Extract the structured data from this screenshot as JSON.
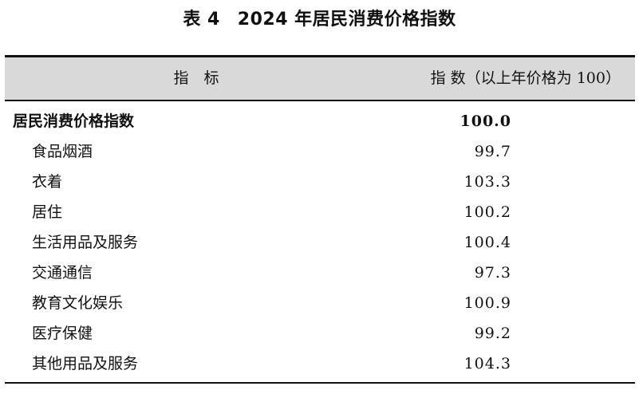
{
  "title": {
    "table_no": "表 4",
    "text": "2024 年居民消费价格指数"
  },
  "header": {
    "indicator": "指　标",
    "index": "指 数（以上年价格为 100）"
  },
  "rows": [
    {
      "name": "居民消费价格指数",
      "value": "100.0"
    },
    {
      "name": "食品烟酒",
      "value": "99.7"
    },
    {
      "name": "衣着",
      "value": "103.3"
    },
    {
      "name": "居住",
      "value": "100.2"
    },
    {
      "name": "生活用品及服务",
      "value": "100.4"
    },
    {
      "name": "交通通信",
      "value": "97.3"
    },
    {
      "name": "教育文化娱乐",
      "value": "100.9"
    },
    {
      "name": "医疗保健",
      "value": "99.2"
    },
    {
      "name": "其他用品及服务",
      "value": "104.3"
    }
  ]
}
